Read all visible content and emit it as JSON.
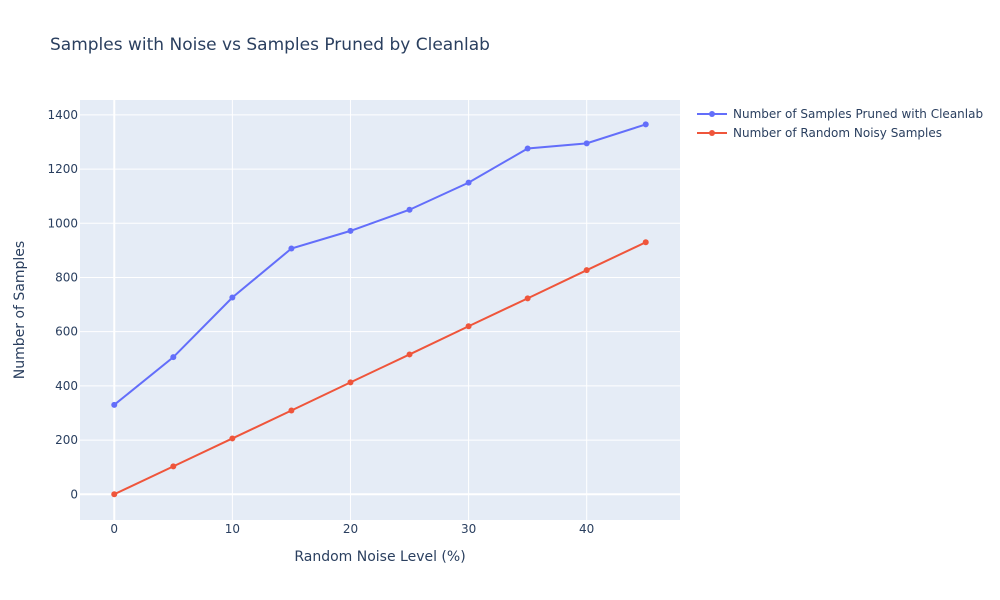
{
  "chart_data": {
    "type": "line",
    "title": "Samples with Noise vs Samples Pruned by Cleanlab",
    "xlabel": "Random Noise Level (%)",
    "ylabel": "Number of Samples",
    "xlim": [
      -2.9,
      47.9
    ],
    "ylim": [
      -95,
      1455
    ],
    "x_ticks": [
      0,
      10,
      20,
      30,
      40
    ],
    "y_ticks": [
      0,
      200,
      400,
      600,
      800,
      1000,
      1200,
      1400
    ],
    "grid": true,
    "legend_position": "top-right outside",
    "x": [
      0,
      5,
      10,
      15,
      20,
      25,
      30,
      35,
      40,
      45
    ],
    "series": [
      {
        "name": "Number of Samples Pruned with Cleanlab",
        "color": "#636efa",
        "values": [
          330,
          506,
          726,
          907,
          972,
          1050,
          1150,
          1276,
          1295,
          1365
        ]
      },
      {
        "name": "Number of Random Noisy Samples",
        "color": "#ef553b",
        "values": [
          0,
          103,
          206,
          309,
          413,
          516,
          620,
          723,
          827,
          930
        ]
      }
    ]
  }
}
